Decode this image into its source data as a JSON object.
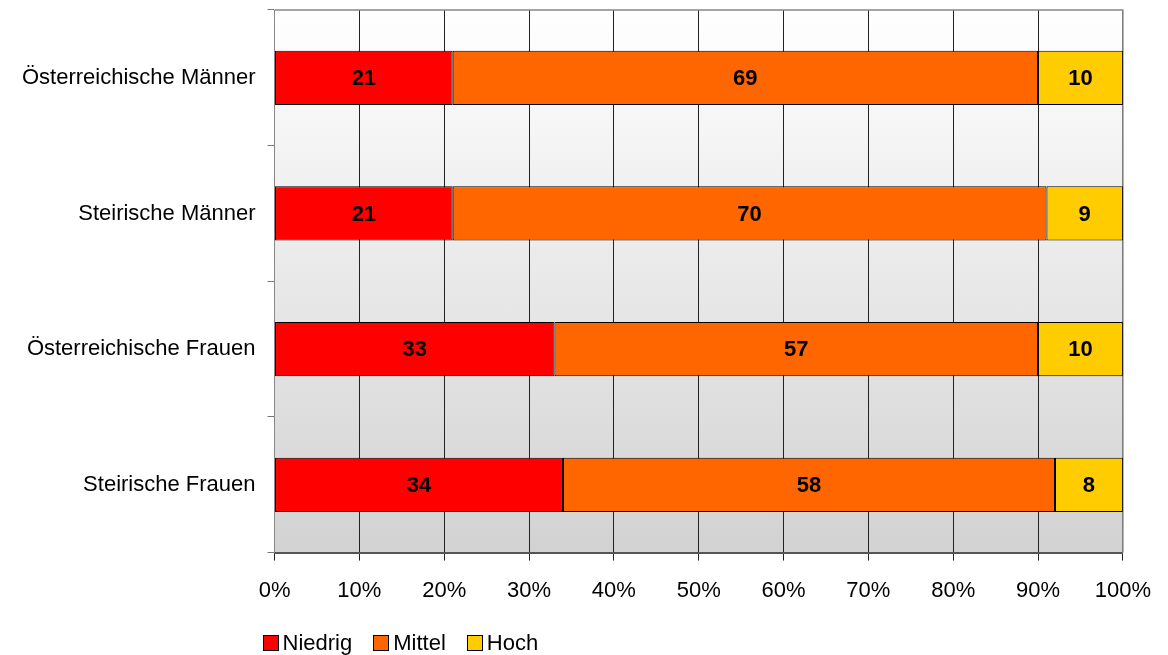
{
  "chart_data": {
    "type": "bar",
    "orientation": "horizontal",
    "stacked": true,
    "categories": [
      "Österreichische Männer",
      "Steirische Männer",
      "Österreichische Frauen",
      "Steirische Frauen"
    ],
    "series": [
      {
        "name": "Niedrig",
        "color": "#ff0000",
        "values": [
          21,
          21,
          33,
          34
        ]
      },
      {
        "name": "Mittel",
        "color": "#ff6600",
        "values": [
          69,
          70,
          57,
          58
        ]
      },
      {
        "name": "Hoch",
        "color": "#ffcc00",
        "values": [
          10,
          9,
          10,
          8
        ]
      }
    ],
    "xlim": [
      0,
      100
    ],
    "xticks": [
      {
        "value": 0,
        "label": "0%"
      },
      {
        "value": 10,
        "label": "10%"
      },
      {
        "value": 20,
        "label": "20%"
      },
      {
        "value": 30,
        "label": "30%"
      },
      {
        "value": 40,
        "label": "40%"
      },
      {
        "value": 50,
        "label": "50%"
      },
      {
        "value": 60,
        "label": "60%"
      },
      {
        "value": 70,
        "label": "70%"
      },
      {
        "value": 80,
        "label": "80%"
      },
      {
        "value": 90,
        "label": "90%"
      },
      {
        "value": 100,
        "label": "100%"
      }
    ],
    "grid": "x",
    "legend": "bottom",
    "data_labels": true
  }
}
